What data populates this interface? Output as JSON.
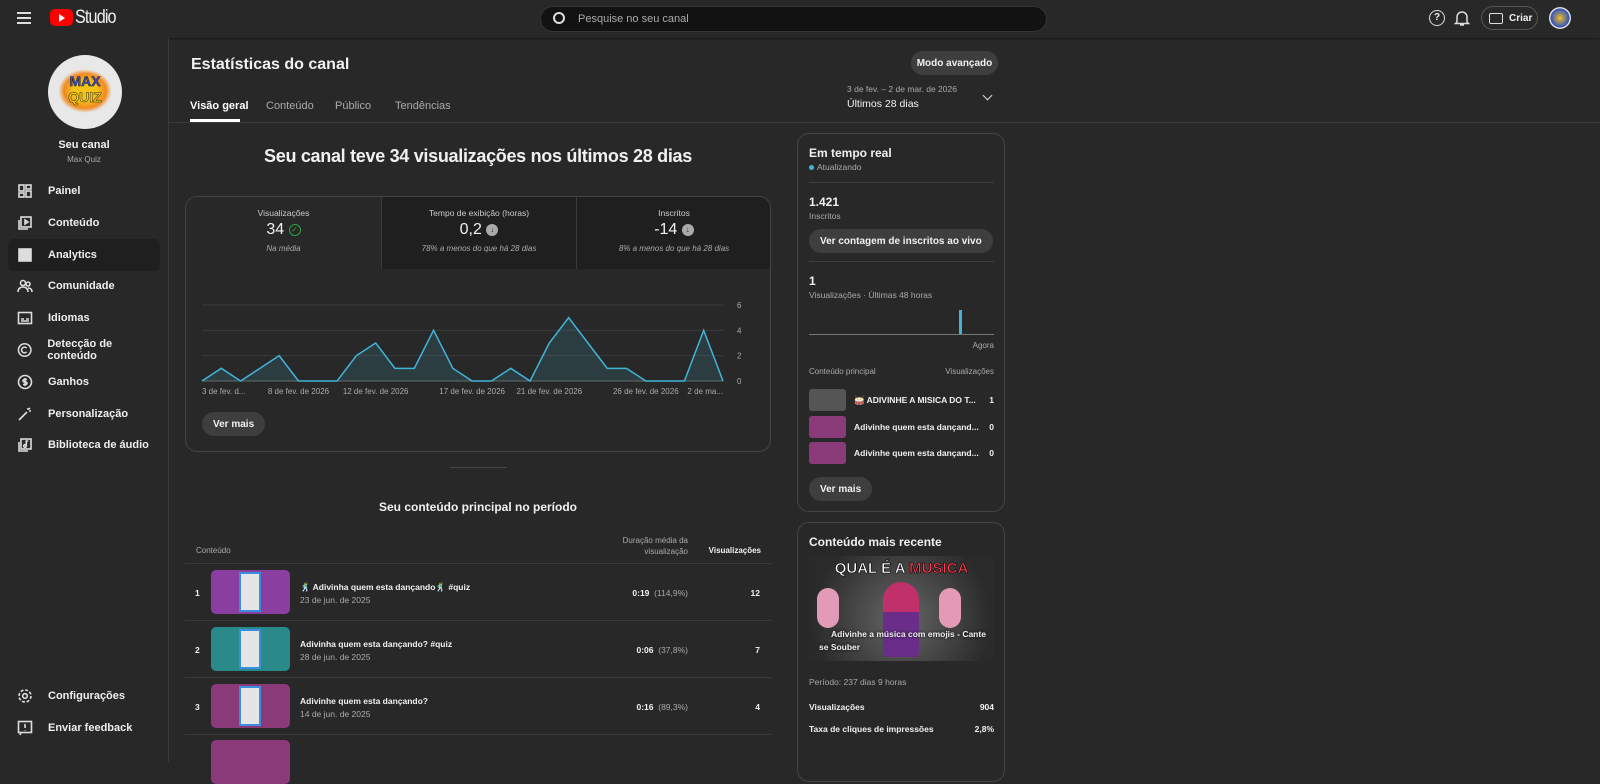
{
  "header": {
    "brand": "Studio",
    "search_placeholder": "Pesquise no seu canal",
    "create_label": "Criar"
  },
  "sidebar": {
    "channel_title": "Seu canal",
    "channel_name": "Max Quiz",
    "items": [
      {
        "label": "Painel",
        "icon": "dashboard-icon"
      },
      {
        "label": "Conteúdo",
        "icon": "content-icon"
      },
      {
        "label": "Analytics",
        "icon": "analytics-icon",
        "active": true
      },
      {
        "label": "Comunidade",
        "icon": "community-icon"
      },
      {
        "label": "Idiomas",
        "icon": "subtitles-icon"
      },
      {
        "label": "Detecção de conteúdo",
        "icon": "copyright-icon"
      },
      {
        "label": "Ganhos",
        "icon": "dollar-icon"
      },
      {
        "label": "Personalização",
        "icon": "magic-wand-icon"
      },
      {
        "label": "Biblioteca de áudio",
        "icon": "audio-library-icon"
      }
    ],
    "bottom": [
      {
        "label": "Configurações",
        "icon": "gear-icon"
      },
      {
        "label": "Enviar feedback",
        "icon": "feedback-icon"
      }
    ]
  },
  "page": {
    "title": "Estatísticas do canal",
    "advanced_label": "Modo avançado",
    "tabs": [
      "Visão geral",
      "Conteúdo",
      "Público",
      "Tendências"
    ],
    "date_range": "3 de fev. – 2 de mar. de 2026",
    "date_preset": "Últimos 28 dias"
  },
  "overview": {
    "headline": "Seu canal teve 34 visualizações nos últimos 28 dias",
    "metrics": [
      {
        "label": "Visualizações",
        "value": "34",
        "note": "Na média",
        "status": "ok"
      },
      {
        "label": "Tempo de exibição (horas)",
        "value": "0,2",
        "note": "78% a menos do que há 28 dias",
        "status": "down"
      },
      {
        "label": "Inscritos",
        "value": "-14",
        "note": "8% a menos do que há 28 dias",
        "status": "down"
      }
    ],
    "see_more": "Ver mais"
  },
  "chart_data": {
    "type": "area",
    "series": [
      {
        "values": [
          0,
          1,
          0,
          1,
          2,
          0,
          0,
          0,
          2,
          3,
          1,
          1,
          4,
          1,
          0,
          0,
          1,
          0,
          3,
          5,
          3,
          1,
          1,
          0,
          0,
          0,
          4,
          0
        ]
      }
    ],
    "x_ticks": [
      "3 de fev. d...",
      "8 de fev. de 2026",
      "12 de fev. de 2026",
      "17 de fev. de 2026",
      "21 de fev. de 2026",
      "26 de fev. de 2026",
      "2 de ma..."
    ],
    "x_tick_index": [
      0,
      5,
      9,
      14,
      18,
      23,
      27
    ],
    "y_ticks": [
      "0",
      "2",
      "4",
      "6"
    ],
    "ylim": [
      0,
      6
    ],
    "grid": true,
    "color": "#41b4d8"
  },
  "top_content": {
    "title": "Seu conteúdo principal no período",
    "col_content": "Conteúdo",
    "col_duration": "Duração média da visualização",
    "col_views": "Visualizações",
    "rows": [
      {
        "rank": "1",
        "title": "🕺 Adivinha quem esta dançando🕺 #quiz",
        "date": "23 de jun. de 2025",
        "duration": "0:19",
        "pct": "(114,9%)",
        "views": "12",
        "color": "#8a3fa0"
      },
      {
        "rank": "2",
        "title": "Adivinha quem esta dançando? #quiz",
        "date": "28 de jun. de 2025",
        "duration": "0:06",
        "pct": "(37,8%)",
        "views": "7",
        "color": "#2a8a8a"
      },
      {
        "rank": "3",
        "title": "Adivinhe quem esta dançando?",
        "date": "14 de jun. de 2025",
        "duration": "0:16",
        "pct": "(89,3%)",
        "views": "4",
        "color": "#8a3a78"
      }
    ]
  },
  "realtime": {
    "title": "Em tempo real",
    "status": "Atualizando",
    "subs": "1.421",
    "subs_label": "Inscritos",
    "live_btn": "Ver contagem de inscritos ao vivo",
    "views": "1",
    "views_label": "Visualizações · Últimas 48 horas",
    "now_label": "Agora",
    "col_content": "Conteúdo principal",
    "col_views": "Visualizações",
    "items": [
      {
        "title": "🥁 ADIVINHE A MISICA DO T...",
        "views": "1"
      },
      {
        "title": "Adivinhe quem esta dançand...",
        "views": "0"
      },
      {
        "title": "Adivinhe quem esta dançand...",
        "views": "0"
      }
    ],
    "see_more": "Ver mais"
  },
  "latest": {
    "title": "Conteúdo mais recente",
    "thumb_heading_a": "QUAL É A ",
    "thumb_heading_b": "MUSICA",
    "video_title": "Adivinhe a música com emojis - Cante se Souber",
    "period": "Período: 237 dias 9 horas",
    "stats": [
      {
        "label": "Visualizações",
        "value": "904"
      },
      {
        "label": "Taxa de cliques de impressões",
        "value": "2,8%"
      }
    ]
  }
}
